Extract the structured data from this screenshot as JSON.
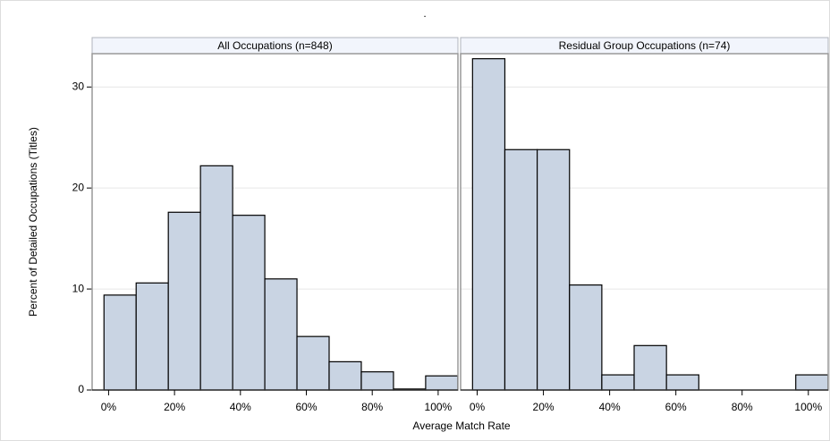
{
  "title": ".",
  "x_label": "Average Match Rate",
  "y_label": "Percent of Detailed Occupations (Titles)",
  "chart_data": [
    {
      "type": "histogram",
      "title": "All Occupations (n=848)",
      "bins": [
        -1.4,
        8.36,
        18.12,
        27.88,
        37.64,
        47.4,
        57.16,
        66.92,
        76.68,
        86.44,
        96.2,
        105.96
      ],
      "values": [
        9.4,
        10.6,
        17.6,
        22.2,
        17.3,
        11.0,
        5.3,
        2.8,
        1.8,
        0.1,
        1.4
      ],
      "color": "#c9d4e3",
      "xlim": [
        -5,
        106
      ],
      "ylim": [
        0,
        33.3
      ],
      "xticks": [
        {
          "value": 0,
          "label": "0%"
        },
        {
          "value": 20,
          "label": "20%"
        },
        {
          "value": 40,
          "label": "40%"
        },
        {
          "value": 60,
          "label": "60%"
        },
        {
          "value": 80,
          "label": "80%"
        },
        {
          "value": 100,
          "label": "100%"
        }
      ],
      "yticks": [
        0,
        10,
        20,
        30
      ],
      "grid": true
    },
    {
      "type": "histogram",
      "title": "Residual Group Occupations (n=74)",
      "bins": [
        -1.4,
        8.36,
        18.12,
        27.88,
        37.64,
        47.4,
        57.16,
        66.92,
        76.68,
        86.44,
        96.2,
        105.96
      ],
      "values": [
        32.8,
        23.8,
        23.8,
        10.4,
        1.5,
        4.4,
        1.5,
        0,
        0,
        0,
        1.5
      ],
      "color": "#c9d4e3",
      "xlim": [
        -5,
        106
      ],
      "ylim": [
        0,
        33.3
      ],
      "xticks": [
        {
          "value": 0,
          "label": "0%"
        },
        {
          "value": 20,
          "label": "20%"
        },
        {
          "value": 40,
          "label": "40%"
        },
        {
          "value": 60,
          "label": "60%"
        },
        {
          "value": 80,
          "label": "80%"
        },
        {
          "value": 100,
          "label": "100%"
        }
      ],
      "grid": true
    }
  ]
}
